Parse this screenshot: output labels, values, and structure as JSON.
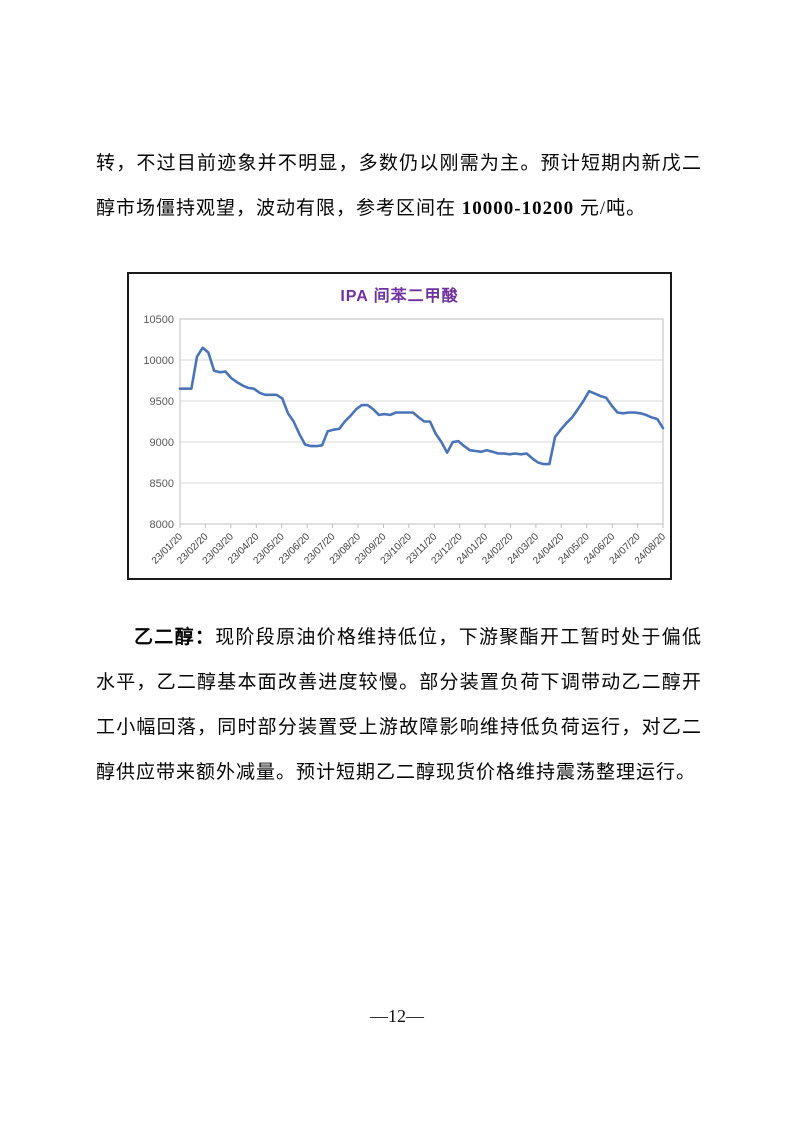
{
  "paragraph_top": {
    "pre": "转，不过目前迹象并不明显，多数仍以刚需为主。预计短期内新戊二醇市场僵持观望，波动有限，参考区间在 ",
    "range": "10000-10200",
    "post": " 元/吨。"
  },
  "chart_data": {
    "type": "line",
    "title": "IPA 间苯二甲酸",
    "title_color": "#7030A0",
    "line_color": "#4A74B8",
    "grid": "horizontal",
    "legend": "none",
    "xlabel": "",
    "ylabel": "",
    "ylim": [
      8000,
      10500
    ],
    "y_ticks": [
      10500,
      10000,
      9500,
      9000,
      8500,
      8000
    ],
    "x_tick_labels": [
      "23/01/20",
      "23/02/20",
      "23/03/20",
      "23/04/20",
      "23/05/20",
      "23/06/20",
      "23/07/20",
      "23/08/20",
      "23/09/20",
      "23/10/20",
      "23/11/20",
      "23/12/20",
      "24/01/20",
      "24/02/20",
      "24/03/20",
      "24/04/20",
      "24/05/20",
      "24/06/20",
      "24/07/20",
      "24/08/20"
    ],
    "series": [
      {
        "name": "IPA",
        "values": [
          9650,
          9650,
          9650,
          10040,
          10150,
          10090,
          9870,
          9850,
          9860,
          9780,
          9730,
          9690,
          9660,
          9650,
          9600,
          9575,
          9575,
          9575,
          9530,
          9350,
          9250,
          9100,
          8970,
          8950,
          8950,
          8960,
          9130,
          9150,
          9160,
          9250,
          9320,
          9400,
          9450,
          9450,
          9400,
          9330,
          9340,
          9330,
          9360,
          9360,
          9360,
          9360,
          9300,
          9250,
          9250,
          9100,
          9000,
          8870,
          9000,
          9010,
          8950,
          8900,
          8890,
          8880,
          8900,
          8880,
          8860,
          8860,
          8850,
          8860,
          8850,
          8860,
          8800,
          8750,
          8730,
          8730,
          9060,
          9150,
          9230,
          9300,
          9400,
          9500,
          9620,
          9590,
          9560,
          9540,
          9440,
          9360,
          9350,
          9360,
          9360,
          9350,
          9330,
          9300,
          9280,
          9170
        ]
      }
    ]
  },
  "paragraph_eg": {
    "lead": "乙二醇：",
    "body": "现阶段原油价格维持低位，下游聚酯开工暂时处于偏低水平，乙二醇基本面改善进度较慢。部分装置负荷下调带动乙二醇开工小幅回落，同时部分装置受上游故障影响维持低负荷运行，对乙二醇供应带来额外减量。预计短期乙二醇现货价格维持震荡整理运行。"
  },
  "footer": {
    "page_number": "—12—"
  }
}
